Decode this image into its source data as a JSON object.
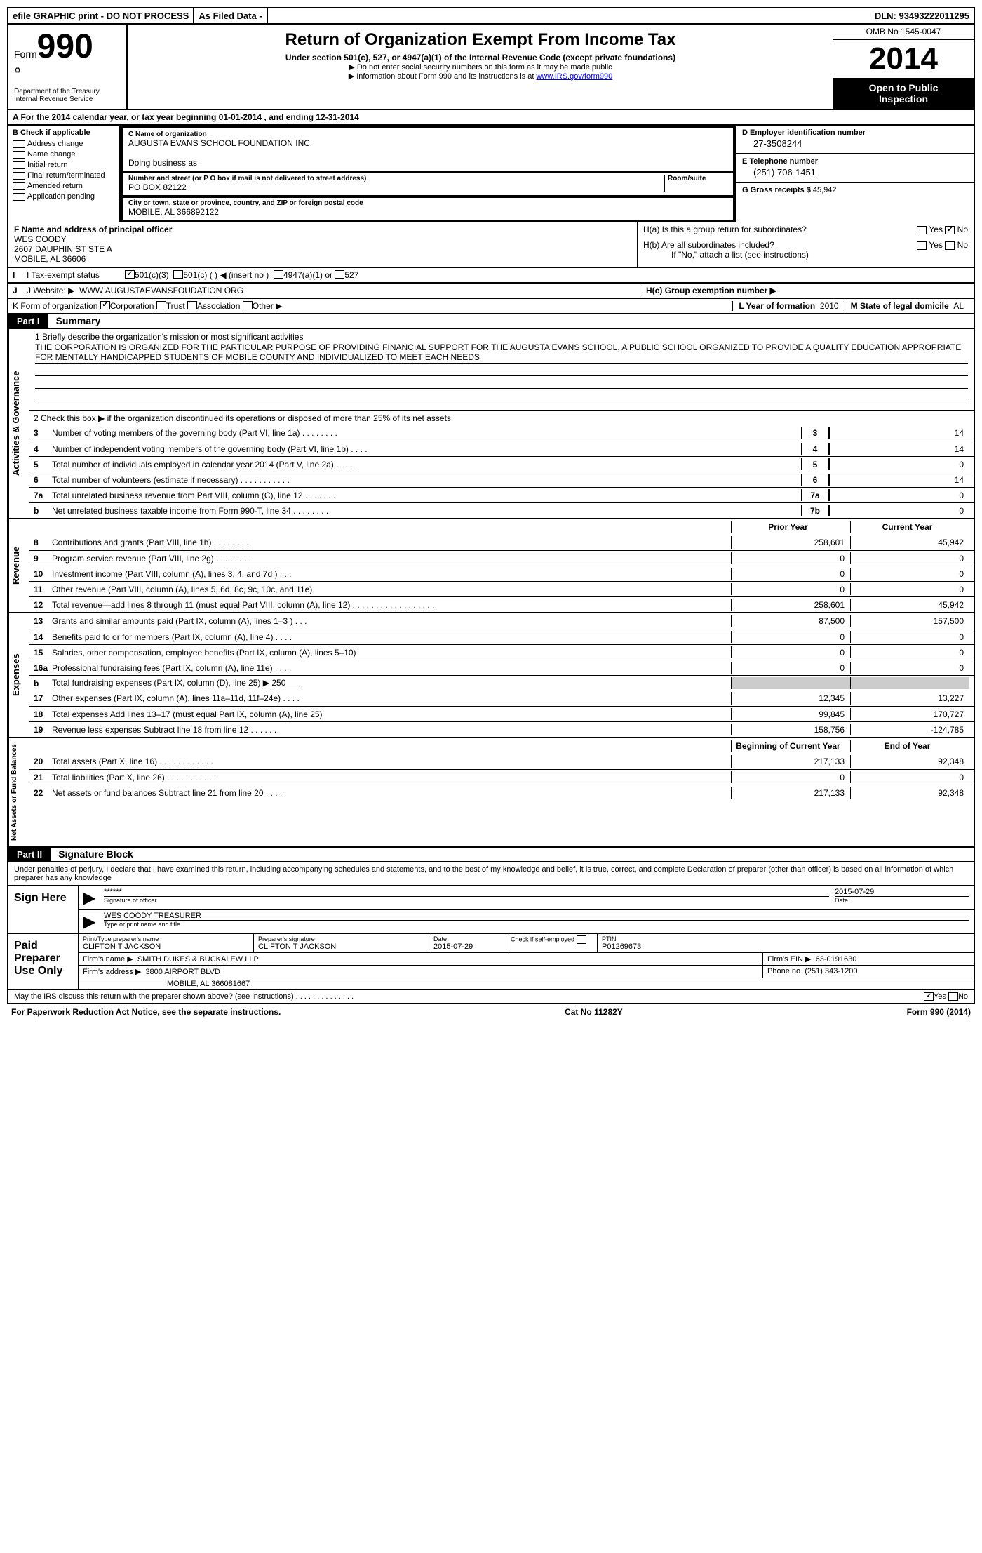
{
  "topbar": {
    "efile": "efile GRAPHIC print - DO NOT PROCESS",
    "asfiled": "As Filed Data -",
    "dln_label": "DLN:",
    "dln": "93493222011295"
  },
  "header": {
    "form_label": "Form",
    "form_num": "990",
    "dept1": "Department of the Treasury",
    "dept2": "Internal Revenue Service",
    "title": "Return of Organization Exempt From Income Tax",
    "subtitle": "Under section 501(c), 527, or 4947(a)(1) of the Internal Revenue Code (except private foundations)",
    "note1": "▶ Do not enter social security numbers on this form as it may be made public",
    "note2_a": "▶ Information about Form 990 and its instructions is at ",
    "note2_link": "www.IRS.gov/form990",
    "omb": "OMB No 1545-0047",
    "year": "2014",
    "open1": "Open to Public",
    "open2": "Inspection"
  },
  "rowA": {
    "text_a": "A  For the 2014 calendar year, or tax year beginning ",
    "begin": "01-01-2014",
    "text_b": "  , and ending ",
    "end": "12-31-2014"
  },
  "colB": {
    "label": "B  Check if applicable",
    "items": [
      "Address change",
      "Name change",
      "Initial return",
      "Final return/terminated",
      "Amended return",
      "Application pending"
    ]
  },
  "colC": {
    "name_lbl": "C Name of organization",
    "name": "AUGUSTA EVANS SCHOOL FOUNDATION INC",
    "dba_lbl": "Doing business as",
    "dba": "",
    "addr_lbl": "Number and street (or P O  box if mail is not delivered to street address)",
    "room_lbl": "Room/suite",
    "addr": "PO BOX 82122",
    "city_lbl": "City or town, state or province, country, and ZIP or foreign postal code",
    "city": "MOBILE, AL  366892122"
  },
  "colD": {
    "ein_lbl": "D Employer identification number",
    "ein": "27-3508244",
    "tel_lbl": "E Telephone number",
    "tel": "(251) 706-1451",
    "gross_lbl": "G Gross receipts $ ",
    "gross": "45,942"
  },
  "rowF": {
    "lbl": "F  Name and address of principal officer",
    "name": "WES COODY",
    "addr1": "2607 DAUPHIN ST STE A",
    "addr2": "MOBILE, AL  36606"
  },
  "rowH": {
    "ha": "H(a)  Is this a group return for subordinates?",
    "hb": "H(b)  Are all subordinates included?",
    "hb_note": "If \"No,\" attach a list  (see instructions)",
    "hc": "H(c)   Group exemption number ▶",
    "yes": "Yes",
    "no": "No"
  },
  "rowI": {
    "lbl": "I   Tax-exempt status",
    "c3": "501(c)(3)",
    "c": "501(c) (   ) ◀ (insert no )",
    "a1": "4947(a)(1) or",
    "527": "527"
  },
  "rowJ": {
    "lbl": "J   Website: ▶",
    "val": "WWW AUGUSTAEVANSFOUDATION ORG"
  },
  "rowK": {
    "lbl": "K Form of organization",
    "corp": "Corporation",
    "trust": "Trust",
    "assoc": "Association",
    "other": "Other ▶",
    "L_lbl": "L Year of formation",
    "L_val": "2010",
    "M_lbl": "M State of legal domicile",
    "M_val": "AL"
  },
  "part1": {
    "hdr": "Part I",
    "title": "Summary"
  },
  "summary": {
    "line1_lbl": "1   Briefly describe the organization's mission or most significant activities",
    "line1_val": "THE CORPORATION IS ORGANIZED FOR THE PARTICULAR PURPOSE OF PROVIDING FINANCIAL SUPPORT FOR THE AUGUSTA EVANS SCHOOL, A PUBLIC SCHOOL ORGANIZED TO PROVIDE A QUALITY EDUCATION APPROPRIATE FOR MENTALLY HANDICAPPED STUDENTS OF MOBILE COUNTY AND INDIVIDUALIZED TO MEET EACH NEEDS",
    "line2": "2   Check this box ▶     if the organization discontinued its operations or disposed of more than 25% of its net assets",
    "gov_items": [
      {
        "n": "3",
        "t": "Number of voting members of the governing body (Part VI, line 1a)  .   .   .   .   .   .   .   .",
        "b": "3",
        "v": "14"
      },
      {
        "n": "4",
        "t": "Number of independent voting members of the governing body (Part VI, line 1b)  .   .   .   .",
        "b": "4",
        "v": "14"
      },
      {
        "n": "5",
        "t": "Total number of individuals employed in calendar year 2014 (Part V, line 2a)  .   .   .   .   .",
        "b": "5",
        "v": "0"
      },
      {
        "n": "6",
        "t": "Total number of volunteers (estimate if necessary)  .   .   .   .   .   .   .   .   .   .   .",
        "b": "6",
        "v": "14"
      },
      {
        "n": "7a",
        "t": "Total unrelated business revenue from Part VIII, column (C), line 12  .   .   .   .   .   .   .",
        "b": "7a",
        "v": "0"
      },
      {
        "n": "b",
        "t": "Net unrelated business taxable income from Form 990-T, line 34  .   .   .   .   .   .   .   .",
        "b": "7b",
        "v": "0"
      }
    ],
    "prior_hdr": "Prior Year",
    "curr_hdr": "Current Year",
    "revenue": [
      {
        "n": "8",
        "t": "Contributions and grants (Part VIII, line 1h)   .    .    .    .    .    .    .    .",
        "p": "258,601",
        "c": "45,942"
      },
      {
        "n": "9",
        "t": "Program service revenue (Part VIII, line 2g)   .    .    .    .    .    .    .    .",
        "p": "0",
        "c": "0"
      },
      {
        "n": "10",
        "t": "Investment income (Part VIII, column (A), lines 3, 4, and 7d )   .    .    .",
        "p": "0",
        "c": "0"
      },
      {
        "n": "11",
        "t": "Other revenue (Part VIII, column (A), lines 5, 6d, 8c, 9c, 10c, and 11e)",
        "p": "0",
        "c": "0"
      },
      {
        "n": "12",
        "t": "Total revenue—add lines 8 through 11 (must equal Part VIII, column (A), line 12) .    .    .    .    .    .    .    .    .    .    .    .    .    .    .    .    .    .",
        "p": "258,601",
        "c": "45,942"
      }
    ],
    "expenses": [
      {
        "n": "13",
        "t": "Grants and similar amounts paid (Part IX, column (A), lines 1–3 )   .    .    .",
        "p": "87,500",
        "c": "157,500"
      },
      {
        "n": "14",
        "t": "Benefits paid to or for members (Part IX, column (A), line 4)   .    .    .    .",
        "p": "0",
        "c": "0"
      },
      {
        "n": "15",
        "t": "Salaries, other compensation, employee benefits (Part IX, column (A), lines 5–10)",
        "p": "0",
        "c": "0"
      },
      {
        "n": "16a",
        "t": "Professional fundraising fees (Part IX, column (A), line 11e)   .    .    .    .",
        "p": "0",
        "c": "0"
      }
    ],
    "line16b": {
      "n": "b",
      "t": "Total fundraising expenses (Part IX, column (D), line 25) ▶",
      "v": "250"
    },
    "expenses2": [
      {
        "n": "17",
        "t": "Other expenses (Part IX, column (A), lines 11a–11d, 11f–24e)   .    .    .    .",
        "p": "12,345",
        "c": "13,227"
      },
      {
        "n": "18",
        "t": "Total expenses  Add lines 13–17 (must equal Part IX, column (A), line 25)",
        "p": "99,845",
        "c": "170,727"
      },
      {
        "n": "19",
        "t": "Revenue less expenses  Subtract line 18 from line 12   .    .    .    .    .    .",
        "p": "158,756",
        "c": "-124,785"
      }
    ],
    "na_hdr1": "Beginning of Current Year",
    "na_hdr2": "End of Year",
    "netassets": [
      {
        "n": "20",
        "t": "Total assets (Part X, line 16)   .    .    .    .    .    .    .    .    .    .    .    .",
        "p": "217,133",
        "c": "92,348"
      },
      {
        "n": "21",
        "t": "Total liabilities (Part X, line 26)   .    .    .    .    .    .    .    .    .    .    .",
        "p": "0",
        "c": "0"
      },
      {
        "n": "22",
        "t": "Net assets or fund balances  Subtract line 21 from line 20   .    .    .    .",
        "p": "217,133",
        "c": "92,348"
      }
    ]
  },
  "vside": {
    "gov": "Activities & Governance",
    "rev": "Revenue",
    "exp": "Expenses",
    "na": "Net Assets or Fund Balances"
  },
  "part2": {
    "hdr": "Part II",
    "title": "Signature Block",
    "perjury": "Under penalties of perjury, I declare that I have examined this return, including accompanying schedules and statements, and to the best of my knowledge and belief, it is true, correct, and complete  Declaration of preparer (other than officer) is based on all information of which preparer has any knowledge"
  },
  "sign": {
    "sign_lbl": "Sign Here",
    "stars": "******",
    "sig_of_officer": "Signature of officer",
    "date_lbl": "Date",
    "date": "2015-07-29",
    "officer": "WES COODY TREASURER",
    "type_print": "Type or print name and title",
    "paid_lbl": "Paid Preparer Use Only",
    "prep_name_lbl": "Print/Type preparer's name",
    "prep_name": "CLIFTON T JACKSON",
    "prep_sig_lbl": "Preparer's signature",
    "prep_sig": "CLIFTON T JACKSON",
    "prep_date": "2015-07-29",
    "check_self": "Check       if self-employed",
    "ptin_lbl": "PTIN",
    "ptin": "P01269673",
    "firm_name_lbl": "Firm's name      ▶",
    "firm_name": "SMITH DUKES & BUCKALEW LLP",
    "firm_ein_lbl": "Firm's EIN ▶",
    "firm_ein": "63-0191630",
    "firm_addr_lbl": "Firm's address ▶",
    "firm_addr1": "3800 AIRPORT BLVD",
    "firm_addr2": "MOBILE, AL  366081667",
    "phone_lbl": "Phone no",
    "phone": "(251) 343-1200",
    "discuss": "May the IRS discuss this return with the preparer shown above? (see instructions)   .    .    .    .    .    .    .    .    .    .    .    .    .    ."
  },
  "footer": {
    "left": "For Paperwork Reduction Act Notice, see the separate instructions.",
    "mid": "Cat No  11282Y",
    "right": "Form 990 (2014)"
  }
}
